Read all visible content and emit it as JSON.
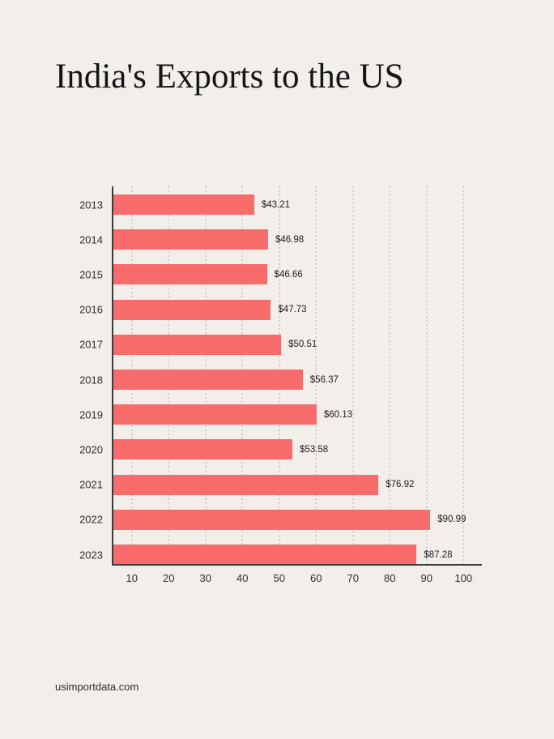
{
  "title": "India's Exports to the US",
  "footer": {
    "source": "usimportdata.com"
  },
  "colors": {
    "background": "#f2eeea",
    "bar": "#f76b6b",
    "axis": "#3a3a3a",
    "gridline": "#d3cec9",
    "text": "#2e2e2e"
  },
  "chart_data": {
    "type": "bar",
    "orientation": "horizontal",
    "title": "India's Exports to the US",
    "categories": [
      "2013",
      "2014",
      "2015",
      "2016",
      "2017",
      "2018",
      "2019",
      "2020",
      "2021",
      "2022",
      "2023"
    ],
    "values": [
      43.21,
      46.98,
      46.66,
      47.73,
      50.51,
      56.37,
      60.13,
      53.58,
      76.92,
      90.99,
      87.28
    ],
    "value_labels": [
      "$43.21",
      "$46.98",
      "$46.66",
      "$47.73",
      "$50.51",
      "$56.37",
      "$60.13",
      "$53.58",
      "$76.92",
      "$90.99",
      "$87.28"
    ],
    "xticks": [
      10,
      20,
      30,
      40,
      50,
      60,
      70,
      80,
      90,
      100
    ],
    "xlim": [
      5,
      105
    ],
    "xlabel": "",
    "ylabel": "",
    "grid": "vertical-dotted",
    "legend": "none"
  }
}
